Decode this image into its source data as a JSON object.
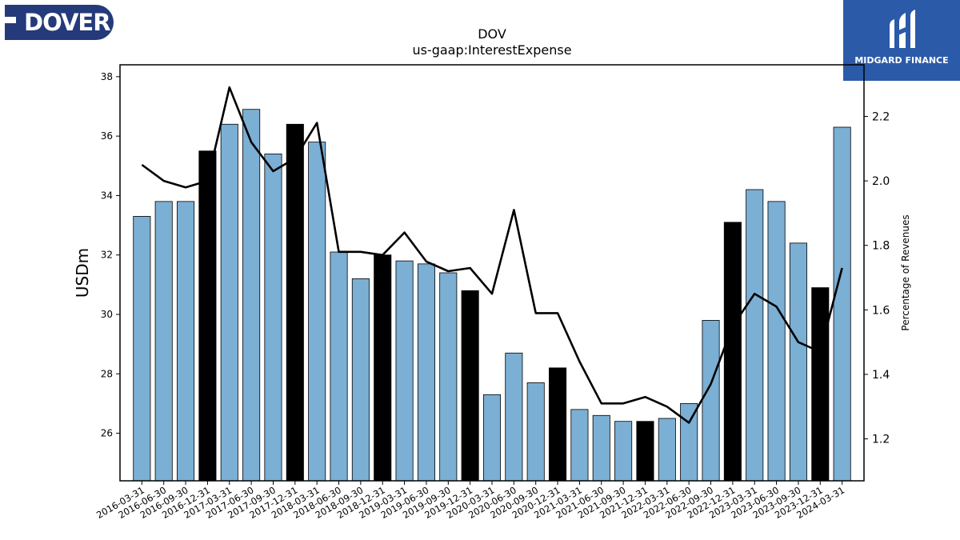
{
  "logos": {
    "left_text": "DOVER",
    "right_text": "MIDGARD FINANCE"
  },
  "chart_data": {
    "type": "bar",
    "title": "DOV",
    "subtitle": "us-gaap:InterestExpense",
    "ylabel": "USDm",
    "y2label": "Percentage of Revenues",
    "ylim": [
      24.4,
      38.4
    ],
    "y2lim": [
      1.07,
      2.36
    ],
    "yticks": [
      26,
      28,
      30,
      32,
      34,
      36,
      38
    ],
    "y2ticks": [
      1.2,
      1.4,
      1.6,
      1.8,
      2.0,
      2.2
    ],
    "colors": {
      "bar": "#7bafd4",
      "highlight": "#000000",
      "line": "#000000"
    },
    "categories": [
      "2016-03-31",
      "2016-06-30",
      "2016-09-30",
      "2016-12-31",
      "2017-03-31",
      "2017-06-30",
      "2017-09-30",
      "2017-12-31",
      "2018-03-31",
      "2018-06-30",
      "2018-09-30",
      "2018-12-31",
      "2019-03-31",
      "2019-06-30",
      "2019-09-30",
      "2019-12-31",
      "2020-03-31",
      "2020-06-30",
      "2020-09-30",
      "2020-12-31",
      "2021-03-31",
      "2021-06-30",
      "2021-09-30",
      "2021-12-31",
      "2022-03-31",
      "2022-06-30",
      "2022-09-30",
      "2022-12-31",
      "2023-03-31",
      "2023-06-30",
      "2023-09-30",
      "2023-12-31",
      "2024-03-31"
    ],
    "series": [
      {
        "type": "bar",
        "values": [
          33.3,
          33.8,
          33.8,
          35.5,
          36.4,
          36.9,
          35.4,
          36.4,
          35.8,
          32.1,
          31.2,
          32.0,
          31.8,
          31.7,
          31.4,
          30.8,
          27.3,
          28.7,
          27.7,
          28.2,
          26.8,
          26.6,
          26.4,
          26.4,
          26.5,
          27.0,
          29.8,
          33.1,
          34.2,
          33.8,
          32.4,
          30.9,
          36.3
        ],
        "highlight_indices": [
          3,
          7,
          11,
          15,
          19,
          23,
          27,
          31
        ]
      },
      {
        "type": "line",
        "axis": "right",
        "values": [
          2.05,
          2.0,
          1.98,
          2.0,
          2.29,
          2.12,
          2.03,
          2.07,
          2.18,
          1.78,
          1.78,
          1.77,
          1.84,
          1.75,
          1.72,
          1.73,
          1.65,
          1.91,
          1.59,
          1.59,
          1.44,
          1.31,
          1.31,
          1.33,
          1.3,
          1.25,
          1.37,
          1.55,
          1.65,
          1.61,
          1.5,
          1.47,
          1.73
        ]
      }
    ]
  }
}
